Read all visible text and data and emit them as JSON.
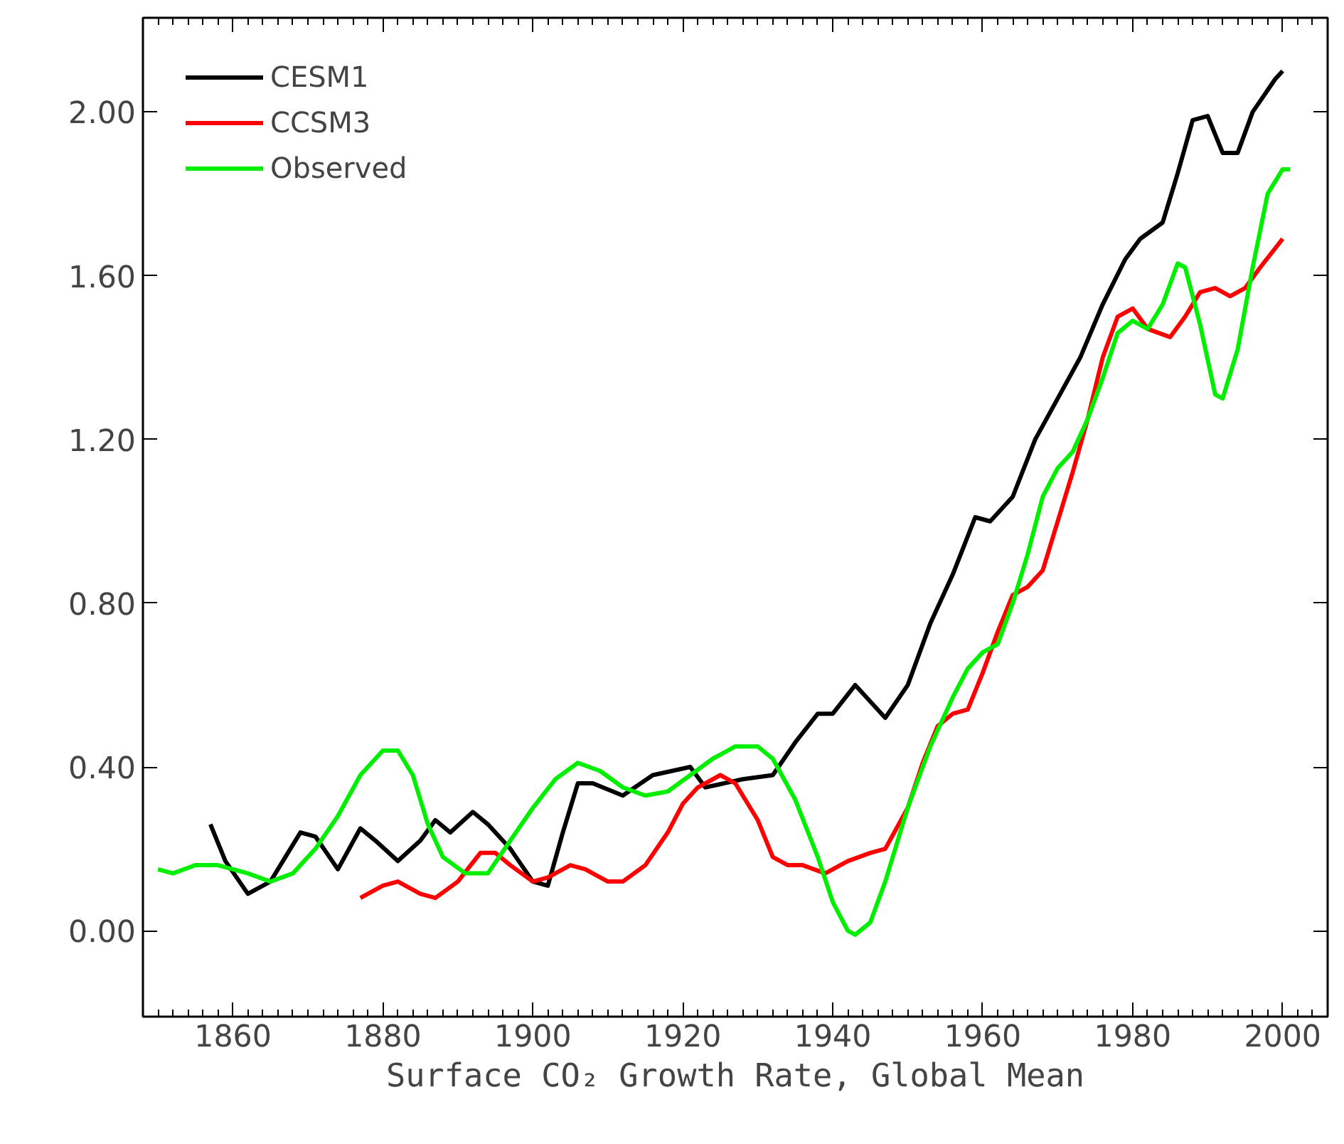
{
  "chart_data": {
    "type": "line",
    "xlabel": "Surface CO₂ Growth Rate, Global Mean",
    "xlim": [
      1848,
      2006
    ],
    "ylim": [
      -0.21,
      2.23
    ],
    "xticks": [
      1860,
      1880,
      1900,
      1920,
      1940,
      1960,
      1980,
      2000
    ],
    "yticks": [
      {
        "value": 0,
        "label": "0.00"
      },
      {
        "value": 0.4,
        "label": "0.40"
      },
      {
        "value": 0.8,
        "label": "0.80"
      },
      {
        "value": 1.2,
        "label": "1.20"
      },
      {
        "value": 1.6,
        "label": "1.60"
      },
      {
        "value": 2.0,
        "label": "2.00"
      }
    ],
    "grid": false,
    "legend": "top left",
    "marker": "none",
    "line_style": "solid",
    "series": [
      {
        "name": "CESM1",
        "color": "#000000",
        "x": [
          1857,
          1859,
          1862,
          1865,
          1869,
          1871,
          1874,
          1877,
          1879,
          1882,
          1885,
          1887,
          1889,
          1892,
          1894,
          1897,
          1900,
          1902,
          1904,
          1906,
          1908,
          1912,
          1916,
          1921,
          1923,
          1928,
          1932,
          1935,
          1938,
          1940,
          1943,
          1947,
          1950,
          1953,
          1956,
          1959,
          1961,
          1964,
          1967,
          1970,
          1973,
          1976,
          1979,
          1981,
          1984,
          1986,
          1988,
          1990,
          1992,
          1994,
          1996,
          1999,
          2000
        ],
        "values": [
          0.26,
          0.17,
          0.09,
          0.12,
          0.24,
          0.23,
          0.15,
          0.25,
          0.22,
          0.17,
          0.22,
          0.27,
          0.24,
          0.29,
          0.26,
          0.2,
          0.12,
          0.11,
          0.24,
          0.36,
          0.36,
          0.33,
          0.38,
          0.4,
          0.35,
          0.37,
          0.38,
          0.46,
          0.53,
          0.53,
          0.6,
          0.52,
          0.6,
          0.75,
          0.87,
          1.01,
          1.0,
          1.06,
          1.2,
          1.3,
          1.4,
          1.53,
          1.64,
          1.69,
          1.73,
          1.85,
          1.98,
          1.99,
          1.9,
          1.9,
          2.0,
          2.08,
          2.1
        ]
      },
      {
        "name": "CCSM3",
        "color": "#ff0000",
        "x": [
          1877,
          1880,
          1882,
          1885,
          1887,
          1890,
          1893,
          1895,
          1897,
          1900,
          1902,
          1905,
          1907,
          1910,
          1912,
          1915,
          1918,
          1920,
          1922,
          1925,
          1927,
          1930,
          1932,
          1934,
          1936,
          1939,
          1942,
          1945,
          1947,
          1950,
          1952,
          1954,
          1956,
          1958,
          1960,
          1962,
          1964,
          1966,
          1968,
          1970,
          1972,
          1974,
          1976,
          1978,
          1980,
          1982,
          1985,
          1987,
          1989,
          1991,
          1993,
          1995,
          1997,
          2000
        ],
        "values": [
          0.08,
          0.11,
          0.12,
          0.09,
          0.08,
          0.12,
          0.19,
          0.19,
          0.16,
          0.12,
          0.13,
          0.16,
          0.15,
          0.12,
          0.12,
          0.16,
          0.24,
          0.31,
          0.35,
          0.38,
          0.36,
          0.27,
          0.18,
          0.16,
          0.16,
          0.14,
          0.17,
          0.19,
          0.2,
          0.3,
          0.41,
          0.5,
          0.53,
          0.54,
          0.63,
          0.73,
          0.82,
          0.84,
          0.88,
          1.0,
          1.12,
          1.25,
          1.4,
          1.5,
          1.52,
          1.47,
          1.45,
          1.5,
          1.56,
          1.57,
          1.55,
          1.57,
          1.62,
          1.69
        ]
      },
      {
        "name": "Observed",
        "color": "#00ee00",
        "x": [
          1850,
          1852,
          1855,
          1858,
          1862,
          1865,
          1868,
          1871,
          1874,
          1877,
          1880,
          1882,
          1884,
          1886,
          1888,
          1891,
          1894,
          1897,
          1900,
          1903,
          1906,
          1909,
          1912,
          1915,
          1918,
          1921,
          1924,
          1927,
          1930,
          1932,
          1935,
          1938,
          1940,
          1942,
          1943,
          1945,
          1947,
          1950,
          1953,
          1956,
          1958,
          1960,
          1962,
          1964,
          1966,
          1968,
          1970,
          1972,
          1974,
          1976,
          1978,
          1980,
          1982,
          1984,
          1986,
          1987,
          1989,
          1991,
          1992,
          1994,
          1996,
          1998,
          2000,
          2001
        ],
        "values": [
          0.15,
          0.14,
          0.16,
          0.16,
          0.14,
          0.12,
          0.14,
          0.2,
          0.28,
          0.38,
          0.44,
          0.44,
          0.38,
          0.26,
          0.18,
          0.14,
          0.14,
          0.22,
          0.3,
          0.37,
          0.41,
          0.39,
          0.35,
          0.33,
          0.34,
          0.38,
          0.42,
          0.45,
          0.45,
          0.42,
          0.32,
          0.18,
          0.07,
          0.0,
          -0.01,
          0.02,
          0.12,
          0.3,
          0.45,
          0.57,
          0.64,
          0.68,
          0.7,
          0.8,
          0.92,
          1.06,
          1.13,
          1.17,
          1.25,
          1.35,
          1.46,
          1.49,
          1.47,
          1.53,
          1.63,
          1.62,
          1.48,
          1.31,
          1.3,
          1.42,
          1.62,
          1.8,
          1.86,
          1.86
        ]
      }
    ]
  }
}
